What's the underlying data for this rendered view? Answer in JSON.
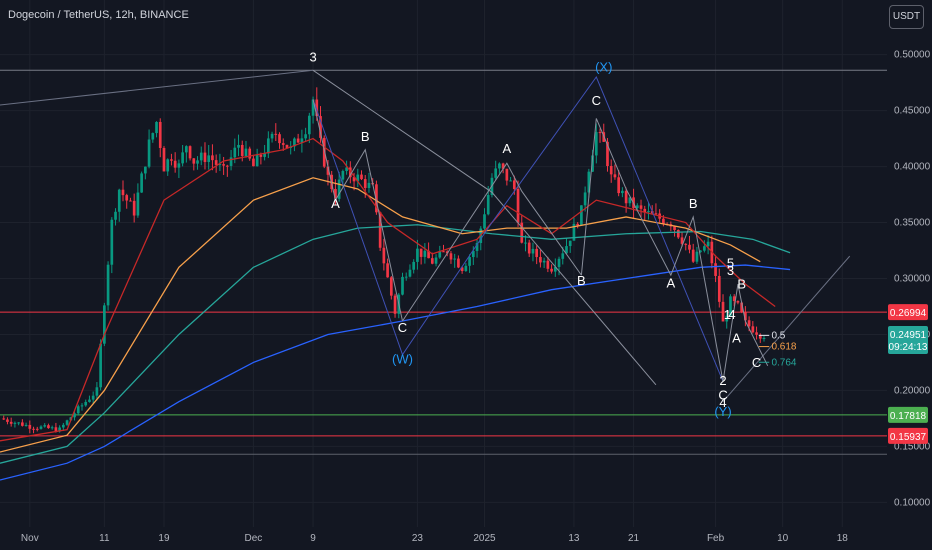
{
  "header": {
    "title": "Dogecoin / TetherUS, 12h, BINANCE",
    "currency_button": "USDT"
  },
  "chart_data": {
    "type": "candlestick",
    "symbol": "Dogecoin / TetherUS",
    "interval": "12h",
    "exchange": "BINANCE",
    "y_axis": {
      "ticks": [
        0.5,
        0.45,
        0.4,
        0.35,
        0.3,
        0.25,
        0.2,
        0.15,
        0.1
      ],
      "tick_labels": [
        "0.50000",
        "0.45000",
        "0.40000",
        "0.35000",
        "0.30000",
        "0.25000",
        "0.20000",
        "0.15000",
        "0.10000"
      ],
      "ylim": [
        0.078,
        0.522
      ]
    },
    "x_axis": {
      "ticks": [
        {
          "day": 0,
          "label": "Nov"
        },
        {
          "day": 10,
          "label": "11"
        },
        {
          "day": 18,
          "label": "19"
        },
        {
          "day": 30,
          "label": "Dec"
        },
        {
          "day": 38,
          "label": "9"
        },
        {
          "day": 52,
          "label": "23"
        },
        {
          "day": 61,
          "label": "2025"
        },
        {
          "day": 73,
          "label": "13"
        },
        {
          "day": 81,
          "label": "21"
        },
        {
          "day": 92,
          "label": "Feb"
        },
        {
          "day": 101,
          "label": "10"
        },
        {
          "day": 109,
          "label": "18"
        }
      ],
      "xlim": [
        -4,
        115
      ]
    },
    "price_anchors": [
      [
        -4,
        0.175
      ],
      [
        0,
        0.168
      ],
      [
        4,
        0.165
      ],
      [
        6,
        0.18
      ],
      [
        9,
        0.2
      ],
      [
        10,
        0.28
      ],
      [
        11,
        0.35
      ],
      [
        12,
        0.38
      ],
      [
        13,
        0.37
      ],
      [
        14,
        0.36
      ],
      [
        15,
        0.39
      ],
      [
        16,
        0.42
      ],
      [
        17,
        0.44
      ],
      [
        18,
        0.4
      ],
      [
        19,
        0.41
      ],
      [
        20,
        0.4
      ],
      [
        21,
        0.42
      ],
      [
        22,
        0.405
      ],
      [
        24,
        0.41
      ],
      [
        26,
        0.395
      ],
      [
        28,
        0.42
      ],
      [
        30,
        0.4
      ],
      [
        31,
        0.41
      ],
      [
        33,
        0.43
      ],
      [
        35,
        0.415
      ],
      [
        37,
        0.435
      ],
      [
        38,
        0.46
      ],
      [
        39,
        0.42
      ],
      [
        40,
        0.39
      ],
      [
        41,
        0.375
      ],
      [
        42,
        0.395
      ],
      [
        44,
        0.39
      ],
      [
        46,
        0.38
      ],
      [
        47,
        0.33
      ],
      [
        49,
        0.27
      ],
      [
        50,
        0.3
      ],
      [
        52,
        0.325
      ],
      [
        54,
        0.315
      ],
      [
        56,
        0.325
      ],
      [
        58,
        0.31
      ],
      [
        60,
        0.33
      ],
      [
        62,
        0.39
      ],
      [
        63,
        0.4
      ],
      [
        64,
        0.39
      ],
      [
        65,
        0.38
      ],
      [
        66,
        0.33
      ],
      [
        68,
        0.32
      ],
      [
        70,
        0.31
      ],
      [
        72,
        0.33
      ],
      [
        74,
        0.36
      ],
      [
        75,
        0.4
      ],
      [
        76,
        0.43
      ],
      [
        77,
        0.42
      ],
      [
        78,
        0.39
      ],
      [
        80,
        0.37
      ],
      [
        82,
        0.36
      ],
      [
        84,
        0.355
      ],
      [
        86,
        0.35
      ],
      [
        88,
        0.33
      ],
      [
        89,
        0.315
      ],
      [
        90,
        0.325
      ],
      [
        91,
        0.33
      ],
      [
        92,
        0.3
      ],
      [
        93,
        0.26
      ],
      [
        94,
        0.28
      ],
      [
        95,
        0.275
      ],
      [
        96,
        0.26
      ],
      [
        97,
        0.255
      ],
      [
        98,
        0.25
      ],
      [
        98.8,
        0.2495
      ]
    ],
    "moving_averages": [
      {
        "color": "#2962ff",
        "values": [
          [
            -4,
            0.12
          ],
          [
            5,
            0.135
          ],
          [
            10,
            0.15
          ],
          [
            20,
            0.19
          ],
          [
            30,
            0.225
          ],
          [
            40,
            0.25
          ],
          [
            50,
            0.262
          ],
          [
            60,
            0.275
          ],
          [
            70,
            0.29
          ],
          [
            80,
            0.3
          ],
          [
            90,
            0.31
          ],
          [
            96,
            0.312
          ],
          [
            102,
            0.308
          ]
        ]
      },
      {
        "color": "#26a69a",
        "values": [
          [
            -4,
            0.135
          ],
          [
            5,
            0.15
          ],
          [
            10,
            0.18
          ],
          [
            20,
            0.25
          ],
          [
            30,
            0.31
          ],
          [
            38,
            0.335
          ],
          [
            44,
            0.345
          ],
          [
            52,
            0.348
          ],
          [
            62,
            0.34
          ],
          [
            70,
            0.335
          ],
          [
            80,
            0.34
          ],
          [
            90,
            0.342
          ],
          [
            97,
            0.335
          ],
          [
            102,
            0.323
          ]
        ]
      },
      {
        "color": "#f7a04b",
        "values": [
          [
            -4,
            0.145
          ],
          [
            5,
            0.16
          ],
          [
            10,
            0.2
          ],
          [
            20,
            0.31
          ],
          [
            30,
            0.37
          ],
          [
            38,
            0.39
          ],
          [
            44,
            0.38
          ],
          [
            50,
            0.355
          ],
          [
            58,
            0.34
          ],
          [
            64,
            0.345
          ],
          [
            72,
            0.345
          ],
          [
            80,
            0.355
          ],
          [
            88,
            0.345
          ],
          [
            94,
            0.33
          ],
          [
            98,
            0.315
          ]
        ]
      },
      {
        "color": "#c62828",
        "values": [
          [
            -4,
            0.155
          ],
          [
            5,
            0.165
          ],
          [
            10,
            0.25
          ],
          [
            18,
            0.37
          ],
          [
            26,
            0.405
          ],
          [
            34,
            0.415
          ],
          [
            38,
            0.425
          ],
          [
            42,
            0.405
          ],
          [
            48,
            0.35
          ],
          [
            54,
            0.322
          ],
          [
            60,
            0.335
          ],
          [
            64,
            0.365
          ],
          [
            70,
            0.34
          ],
          [
            76,
            0.37
          ],
          [
            82,
            0.36
          ],
          [
            88,
            0.35
          ],
          [
            92,
            0.32
          ],
          [
            96,
            0.295
          ],
          [
            100,
            0.275
          ]
        ]
      }
    ],
    "wave_lines": [
      {
        "color": "#6a7083",
        "points": [
          [
            -4,
            0.455
          ],
          [
            38,
            0.486
          ]
        ]
      },
      {
        "color": "#8a8f9c",
        "points": [
          [
            38,
            0.486
          ],
          [
            62,
            0.377
          ],
          [
            84,
            0.205
          ]
        ]
      },
      {
        "color": "#6a7083",
        "points": [
          [
            93,
            0.19
          ],
          [
            110,
            0.32
          ]
        ]
      },
      {
        "color": "#3f51b5",
        "points": [
          [
            38,
            0.46
          ],
          [
            50,
            0.232
          ],
          [
            62,
            0.35
          ],
          [
            76,
            0.48
          ],
          [
            93,
            0.208
          ]
        ]
      },
      {
        "color": "#8a8f9c",
        "points": [
          [
            38,
            0.46
          ],
          [
            41,
            0.37
          ],
          [
            45,
            0.415
          ],
          [
            50,
            0.262
          ]
        ]
      },
      {
        "color": "#8a8f9c",
        "points": [
          [
            50,
            0.262
          ],
          [
            64,
            0.403
          ],
          [
            66,
            0.378
          ],
          [
            74,
            0.303
          ]
        ]
      },
      {
        "color": "#8a8f9c",
        "points": [
          [
            74,
            0.303
          ],
          [
            76,
            0.443
          ],
          [
            80,
            0.38
          ],
          [
            86,
            0.303
          ],
          [
            89,
            0.355
          ],
          [
            93,
            0.208
          ]
        ]
      },
      {
        "color": "#8a8f9c",
        "points": [
          [
            93,
            0.208
          ],
          [
            95,
            0.295
          ],
          [
            96,
            0.262
          ],
          [
            99,
            0.222
          ]
        ]
      }
    ],
    "wave_labels": [
      {
        "text": "3",
        "day": 38,
        "price": 0.494,
        "color": "#ffffff"
      },
      {
        "text": "A",
        "day": 41,
        "price": 0.363,
        "color": "#ffffff"
      },
      {
        "text": "B",
        "day": 45,
        "price": 0.423,
        "color": "#ffffff"
      },
      {
        "text": "C",
        "day": 50,
        "price": 0.252,
        "color": "#ffffff"
      },
      {
        "text": "(W)",
        "day": 50,
        "price": 0.224,
        "color": "#2196f3"
      },
      {
        "text": "A",
        "day": 64,
        "price": 0.412,
        "color": "#ffffff"
      },
      {
        "text": "B",
        "day": 74,
        "price": 0.294,
        "color": "#ffffff"
      },
      {
        "text": "C",
        "day": 76,
        "price": 0.455,
        "color": "#ffffff"
      },
      {
        "text": "(X)",
        "day": 77,
        "price": 0.485,
        "color": "#2196f3"
      },
      {
        "text": "A",
        "day": 86,
        "price": 0.292,
        "color": "#ffffff"
      },
      {
        "text": "B",
        "day": 89,
        "price": 0.363,
        "color": "#ffffff"
      },
      {
        "text": "5",
        "day": 94,
        "price": 0.31,
        "color": "#ffffff"
      },
      {
        "text": "3",
        "day": 94,
        "price": 0.303,
        "color": "#ffffff"
      },
      {
        "text": "B",
        "day": 95.5,
        "price": 0.291,
        "color": "#ffffff"
      },
      {
        "text": "1",
        "day": 93.6,
        "price": 0.264,
        "color": "#ffffff"
      },
      {
        "text": "4",
        "day": 94.2,
        "price": 0.264,
        "color": "#ffffff"
      },
      {
        "text": "A",
        "day": 94.8,
        "price": 0.243,
        "color": "#ffffff"
      },
      {
        "text": "2",
        "day": 93,
        "price": 0.205,
        "color": "#ffffff"
      },
      {
        "text": "C",
        "day": 93,
        "price": 0.192,
        "color": "#ffffff"
      },
      {
        "text": "4",
        "day": 93,
        "price": 0.185,
        "color": "#ffffff"
      },
      {
        "text": "(Y)",
        "day": 93,
        "price": 0.177,
        "color": "#2196f3"
      },
      {
        "text": "C",
        "day": 97.5,
        "price": 0.221,
        "color": "#ffffff"
      }
    ],
    "fib_labels": [
      {
        "text": "0.5",
        "price": 0.2465,
        "color": "#e0e3eb"
      },
      {
        "text": "0.618",
        "price": 0.2365,
        "color": "#f7a04b"
      },
      {
        "text": "0.764",
        "price": 0.2225,
        "color": "#26a69a"
      }
    ],
    "horizontal_lines": [
      {
        "price": 0.48604,
        "color": "#787b86",
        "label": ""
      },
      {
        "price": 0.26994,
        "color": "#f23645",
        "label": "0.26994",
        "label_bg": "#f23645"
      },
      {
        "price": 0.17818,
        "color": "#4caf50",
        "label": "0.17818",
        "label_bg": "#4caf50"
      },
      {
        "price": 0.15937,
        "color": "#f23645",
        "label": "0.15937",
        "label_bg": "#f23645"
      },
      {
        "price": 0.143,
        "color": "#5d606b",
        "label": ""
      }
    ],
    "current_price": {
      "value": "0.24951",
      "countdown": "09:24:13",
      "price": 0.2495,
      "bg": "#26a69a"
    }
  }
}
